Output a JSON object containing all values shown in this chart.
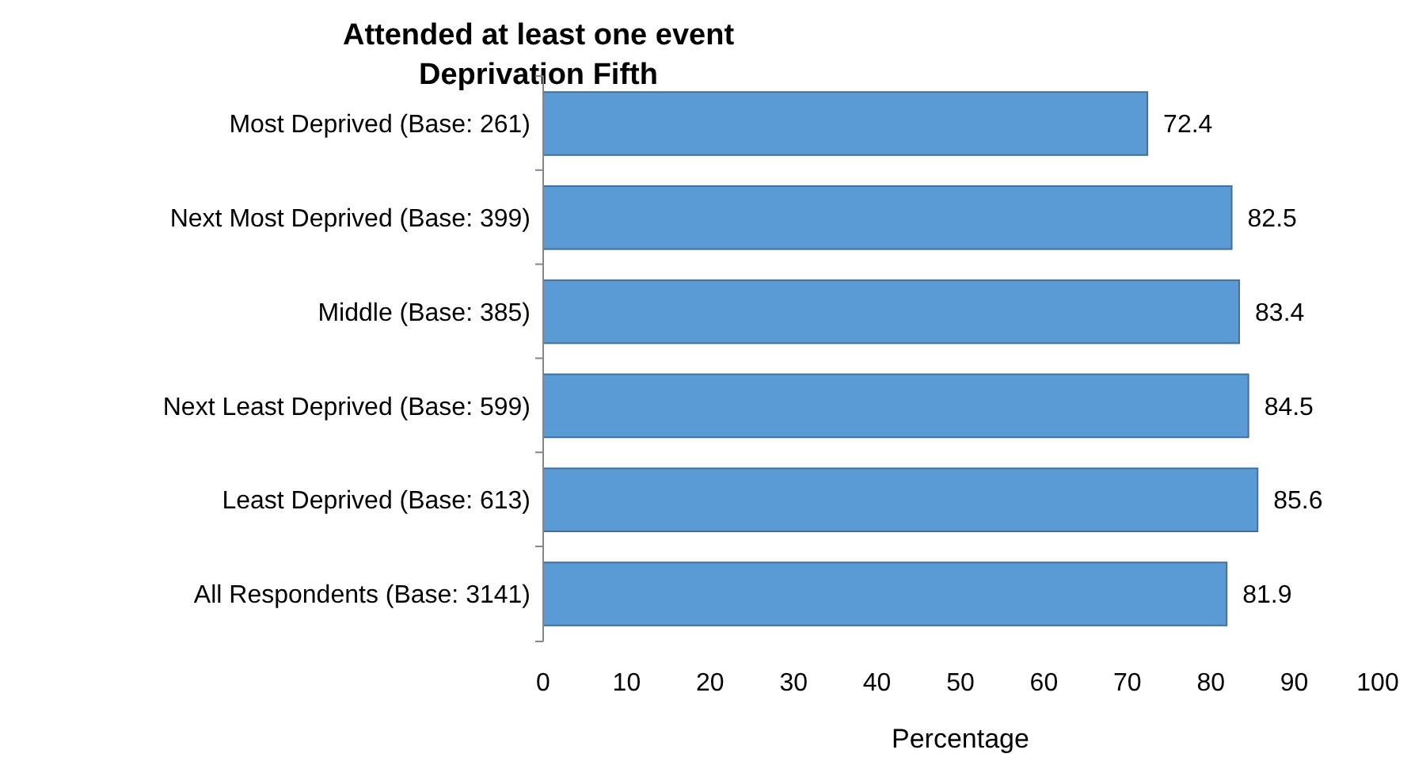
{
  "chart_data": {
    "type": "bar",
    "orientation": "horizontal",
    "title": "Attended at least one event",
    "subtitle": "Deprivation Fifth",
    "xlabel": "Percentage",
    "categories": [
      "Most Deprived (Base: 261)",
      "Next Most Deprived (Base: 399)",
      "Middle (Base: 385)",
      "Next Least Deprived (Base: 599)",
      "Least Deprived (Base: 613)",
      "All Respondents (Base: 3141)"
    ],
    "values": [
      72.4,
      82.5,
      83.4,
      84.5,
      85.6,
      81.9
    ],
    "color": "#5b9bd5",
    "xlim": [
      0,
      100
    ],
    "xticks": [
      0,
      10,
      20,
      30,
      40,
      50,
      60,
      70,
      80,
      90,
      100
    ],
    "data_labels": true
  }
}
